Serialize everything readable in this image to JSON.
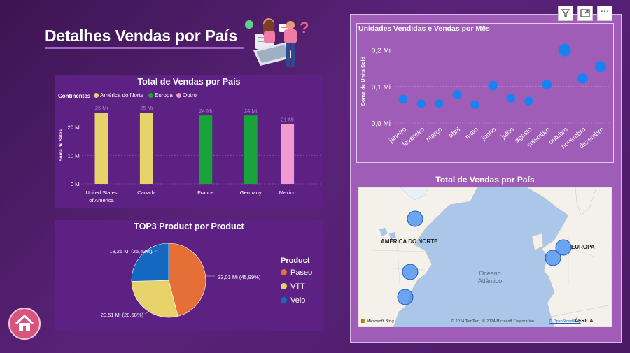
{
  "page": {
    "title": "Detalhes Vendas por País"
  },
  "toolbar": {
    "filter_icon": "filter-icon",
    "focus_icon": "focus-mode-icon",
    "more_label": "···"
  },
  "colors": {
    "america_norte": "#e8d36a",
    "europa": "#19a33a",
    "outro": "#f19acf",
    "paseo": "#e66f37",
    "vtt": "#e8d36a",
    "velo": "#1468c0",
    "dot": "#1a82f0"
  },
  "bar_chart": {
    "title": "Total de Vendas por País",
    "legend_title": "Continentes",
    "legend": [
      "América do Norte",
      "Europa",
      "Outro"
    ],
    "ylabel": "Soma de Sales",
    "yticks": [
      "20 Mi",
      "10 Mi",
      "0 Mi"
    ]
  },
  "pie_chart": {
    "title": "TOP3 Product por Product",
    "legend_title": "Product",
    "legend": [
      "Paseo",
      "VTT",
      "Velo"
    ],
    "labels": [
      "33,01 Mi (45,99%)",
      "20,51 Mi (28,58%)",
      "18,25 Mi (25,43%)"
    ]
  },
  "line_chart": {
    "title": "Unidades Vendidas e Vendas por Mês",
    "ylabel": "Soma de Units Sold",
    "yticks": [
      "0,2 Mi",
      "0,1 Mi",
      "0,0 Mi"
    ]
  },
  "map": {
    "title": "Total de Vendas por País",
    "labels": {
      "north_america": "AMÉRICA DO NORTE",
      "europe": "EUROPA",
      "ocean": "Oceano\nAtlântico",
      "africa": "ÁFRICA"
    },
    "brand": "Microsoft Bing",
    "attribution": "© 2024 TomTom, © 2024 Microsoft Corporation, © OpenStreetMap",
    "attribution_short": "© 2024 TomTom, © 2024 Microsoft Corporation",
    "osm": "© OpenStreetMap"
  },
  "chart_data": [
    {
      "type": "bar",
      "title": "Total de Vendas por País",
      "xlabel": "",
      "ylabel": "Soma de Sales",
      "categories": [
        "United States of America",
        "Canada",
        "France",
        "Germany",
        "Mexico"
      ],
      "category_lines": [
        [
          "United States",
          "of America"
        ],
        [
          "Canada"
        ],
        [
          "France"
        ],
        [
          "Germany"
        ],
        [
          "Mexico"
        ]
      ],
      "values": [
        25,
        25,
        24,
        24,
        21
      ],
      "value_labels": [
        "25 Mi",
        "25 Mi",
        "24 Mi",
        "24 Mi",
        "21 Mi"
      ],
      "continent": [
        "América do Norte",
        "América do Norte",
        "Europa",
        "Europa",
        "Outro"
      ],
      "ylim": [
        0,
        27
      ],
      "grid": true,
      "legend": "top-left"
    },
    {
      "type": "pie",
      "title": "TOP3 Product por Product",
      "categories": [
        "Paseo",
        "VTT",
        "Velo"
      ],
      "values": [
        33.01,
        20.51,
        18.25
      ],
      "percent": [
        45.99,
        28.58,
        25.43
      ],
      "legend": "right"
    },
    {
      "type": "scatter",
      "title": "Unidades Vendidas e Vendas por Mês",
      "xlabel": "",
      "ylabel": "Soma de Units Sold",
      "categories": [
        "janeiro",
        "fevereiro",
        "março",
        "abril",
        "maio",
        "junho",
        "julho",
        "agosto",
        "setembro",
        "outubro",
        "novembro",
        "dezembro"
      ],
      "values": [
        0.065,
        0.053,
        0.053,
        0.078,
        0.05,
        0.102,
        0.068,
        0.06,
        0.105,
        0.2,
        0.122,
        0.155
      ],
      "sizes": [
        0.4,
        0.35,
        0.35,
        0.42,
        0.35,
        0.55,
        0.42,
        0.38,
        0.58,
        1.0,
        0.62,
        0.75
      ],
      "ylim": [
        0,
        0.23
      ],
      "grid": true
    }
  ],
  "map_points": [
    {
      "name": "Canada"
    },
    {
      "name": "United States of America"
    },
    {
      "name": "Mexico"
    },
    {
      "name": "France"
    },
    {
      "name": "Germany"
    }
  ]
}
